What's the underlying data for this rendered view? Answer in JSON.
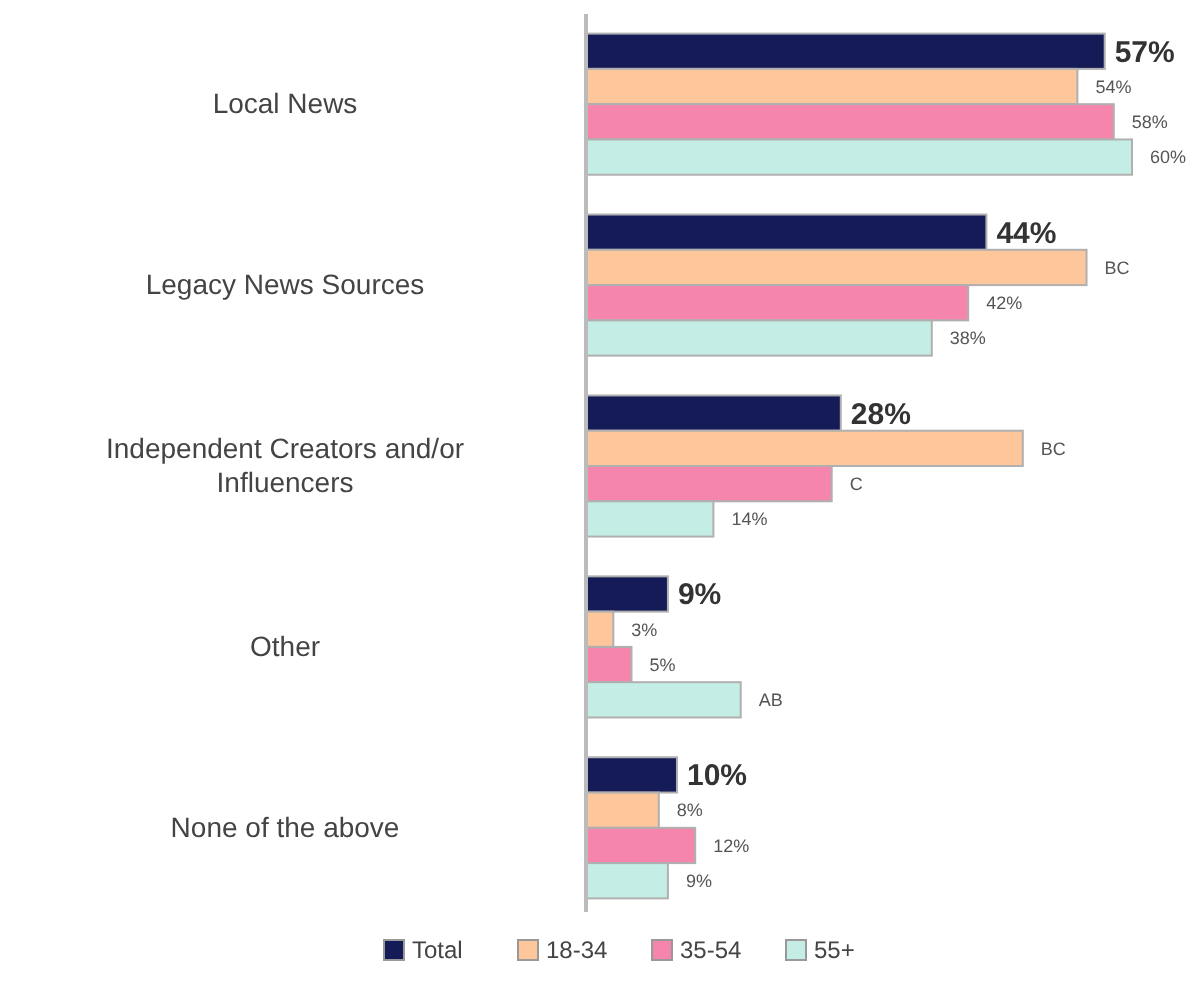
{
  "chart_data": {
    "type": "bar",
    "orientation": "horizontal",
    "categories": [
      "Local News",
      "Legacy News Sources",
      "Independent Creators and/or Influencers",
      "Other",
      "None of the above"
    ],
    "series": [
      {
        "name": "Total",
        "color": "#141b57",
        "values": [
          57,
          44,
          28,
          9,
          10
        ],
        "value_labels": [
          "57%",
          "44%",
          "28%",
          "9%",
          "10%"
        ]
      },
      {
        "name": "18-34",
        "color": "#fdc69b",
        "values": [
          54,
          55,
          48,
          3,
          8
        ],
        "value_labels": [
          "54%",
          "BC",
          "BC",
          "3%",
          "8%"
        ]
      },
      {
        "name": "35-54",
        "color": "#f685ae",
        "values": [
          58,
          42,
          27,
          5,
          12
        ],
        "value_labels": [
          "58%",
          "42%",
          "C",
          "5%",
          "12%"
        ]
      },
      {
        "name": "55+",
        "color": "#c4eee5",
        "values": [
          60,
          38,
          14,
          17,
          9
        ],
        "value_labels": [
          "60%",
          "38%",
          "14%",
          "AB",
          "9%"
        ]
      }
    ],
    "legend": "bottom"
  }
}
